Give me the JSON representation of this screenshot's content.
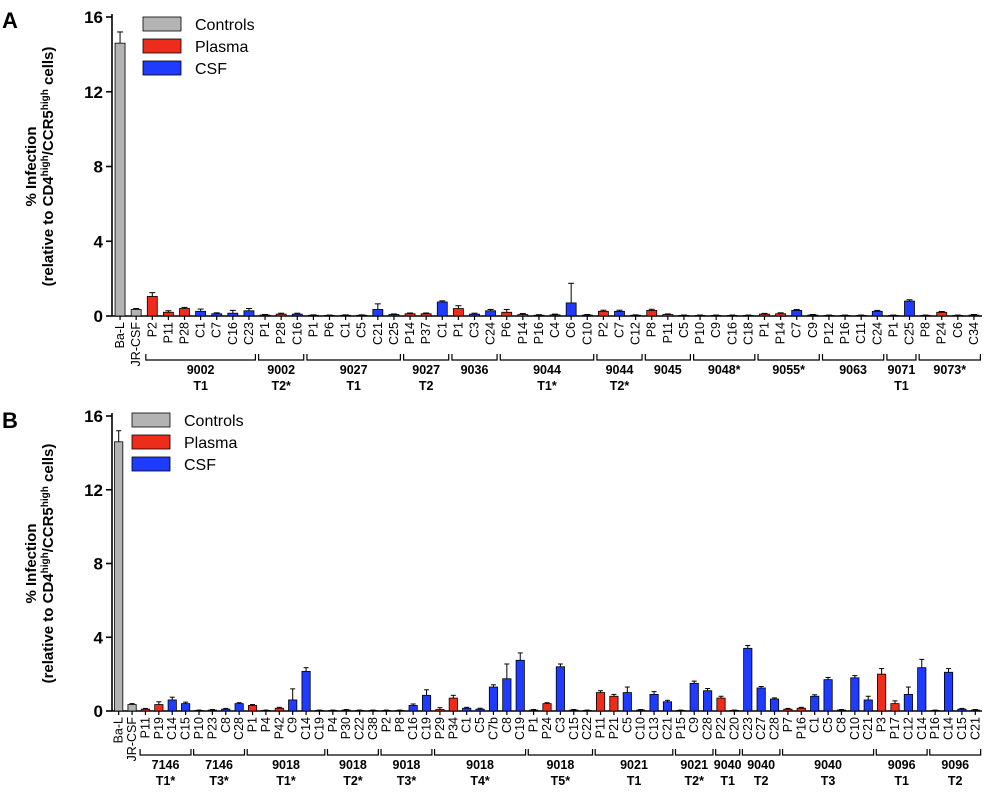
{
  "colors": {
    "controls": "#b3b3b3",
    "plasma": "#ee2c1c",
    "csf": "#1f3bff",
    "axis": "#000000"
  },
  "legend": [
    {
      "key": "controls",
      "label": "Controls"
    },
    {
      "key": "plasma",
      "label": "Plasma"
    },
    {
      "key": "csf",
      "label": "CSF"
    }
  ],
  "chart_data": [
    {
      "type": "bar",
      "panel": "A",
      "ylabel_line1": "% Infection",
      "ylabel_line2_parts": [
        "(relative to CD4",
        "high",
        "/CCR5",
        "high",
        " cells)"
      ],
      "ylim": [
        0,
        16
      ],
      "yticks": [
        "0",
        "4",
        "8",
        "12",
        "16"
      ],
      "bars": [
        {
          "cat": "Ba-L",
          "t": "controls",
          "v": 14.6,
          "e": 0.6
        },
        {
          "cat": "JR-CSF",
          "t": "controls",
          "v": 0.35,
          "e": 0.05
        },
        {
          "cat": "P2",
          "t": "plasma",
          "v": 1.05,
          "e": 0.2
        },
        {
          "cat": "P11",
          "t": "plasma",
          "v": 0.2,
          "e": 0.08
        },
        {
          "cat": "P28",
          "t": "plasma",
          "v": 0.4,
          "e": 0.06
        },
        {
          "cat": "C1",
          "t": "csf",
          "v": 0.25,
          "e": 0.12
        },
        {
          "cat": "C7",
          "t": "csf",
          "v": 0.12,
          "e": 0.05
        },
        {
          "cat": "C16",
          "t": "csf",
          "v": 0.15,
          "e": 0.15
        },
        {
          "cat": "C23",
          "t": "csf",
          "v": 0.28,
          "e": 0.12
        },
        {
          "cat": "P1",
          "t": "plasma",
          "v": 0.05,
          "e": 0.03
        },
        {
          "cat": "P28",
          "t": "plasma",
          "v": 0.1,
          "e": 0.05
        },
        {
          "cat": "C16",
          "t": "csf",
          "v": 0.1,
          "e": 0.05
        },
        {
          "cat": "P1",
          "t": "plasma",
          "v": 0.04,
          "e": 0.02
        },
        {
          "cat": "P6",
          "t": "plasma",
          "v": 0.03,
          "e": 0.02
        },
        {
          "cat": "C1",
          "t": "csf",
          "v": 0.04,
          "e": 0.02
        },
        {
          "cat": "C5",
          "t": "csf",
          "v": 0.04,
          "e": 0.02
        },
        {
          "cat": "C21",
          "t": "csf",
          "v": 0.35,
          "e": 0.3
        },
        {
          "cat": "C25",
          "t": "csf",
          "v": 0.08,
          "e": 0.03
        },
        {
          "cat": "P14",
          "t": "plasma",
          "v": 0.12,
          "e": 0.04
        },
        {
          "cat": "P37",
          "t": "plasma",
          "v": 0.12,
          "e": 0.04
        },
        {
          "cat": "C1",
          "t": "csf",
          "v": 0.75,
          "e": 0.06
        },
        {
          "cat": "P1",
          "t": "plasma",
          "v": 0.4,
          "e": 0.15
        },
        {
          "cat": "C3",
          "t": "csf",
          "v": 0.1,
          "e": 0.05
        },
        {
          "cat": "C24",
          "t": "csf",
          "v": 0.28,
          "e": 0.07
        },
        {
          "cat": "P6",
          "t": "plasma",
          "v": 0.2,
          "e": 0.15
        },
        {
          "cat": "P14",
          "t": "plasma",
          "v": 0.08,
          "e": 0.05
        },
        {
          "cat": "P16",
          "t": "plasma",
          "v": 0.04,
          "e": 0.03
        },
        {
          "cat": "C4",
          "t": "csf",
          "v": 0.06,
          "e": 0.04
        },
        {
          "cat": "C6",
          "t": "csf",
          "v": 0.7,
          "e": 1.05
        },
        {
          "cat": "C10",
          "t": "csf",
          "v": 0.05,
          "e": 0.03
        },
        {
          "cat": "P2",
          "t": "plasma",
          "v": 0.25,
          "e": 0.06
        },
        {
          "cat": "C7",
          "t": "csf",
          "v": 0.25,
          "e": 0.06
        },
        {
          "cat": "C12",
          "t": "csf",
          "v": 0.04,
          "e": 0.02
        },
        {
          "cat": "P8",
          "t": "plasma",
          "v": 0.3,
          "e": 0.06
        },
        {
          "cat": "P11",
          "t": "plasma",
          "v": 0.08,
          "e": 0.03
        },
        {
          "cat": "C5",
          "t": "csf",
          "v": 0.03,
          "e": 0.02
        },
        {
          "cat": "P10",
          "t": "plasma",
          "v": 0.03,
          "e": 0.02
        },
        {
          "cat": "C9",
          "t": "csf",
          "v": 0.03,
          "e": 0.02
        },
        {
          "cat": "C16",
          "t": "csf",
          "v": 0.03,
          "e": 0.02
        },
        {
          "cat": "C18",
          "t": "csf",
          "v": 0.03,
          "e": 0.02
        },
        {
          "cat": "P1",
          "t": "plasma",
          "v": 0.1,
          "e": 0.04
        },
        {
          "cat": "P14",
          "t": "plasma",
          "v": 0.12,
          "e": 0.05
        },
        {
          "cat": "C7",
          "t": "csf",
          "v": 0.3,
          "e": 0.05
        },
        {
          "cat": "C9",
          "t": "csf",
          "v": 0.05,
          "e": 0.03
        },
        {
          "cat": "P12",
          "t": "plasma",
          "v": 0.03,
          "e": 0.02
        },
        {
          "cat": "P16",
          "t": "plasma",
          "v": 0.03,
          "e": 0.02
        },
        {
          "cat": "C11",
          "t": "csf",
          "v": 0.03,
          "e": 0.02
        },
        {
          "cat": "C24",
          "t": "csf",
          "v": 0.25,
          "e": 0.05
        },
        {
          "cat": "P1",
          "t": "plasma",
          "v": 0.03,
          "e": 0.02
        },
        {
          "cat": "C25",
          "t": "csf",
          "v": 0.8,
          "e": 0.07
        },
        {
          "cat": "P8",
          "t": "plasma",
          "v": 0.03,
          "e": 0.02
        },
        {
          "cat": "P24",
          "t": "plasma",
          "v": 0.2,
          "e": 0.04
        },
        {
          "cat": "C6",
          "t": "csf",
          "v": 0.03,
          "e": 0.02
        },
        {
          "cat": "C34",
          "t": "csf",
          "v": 0.05,
          "e": 0.03
        }
      ],
      "groups": [
        {
          "start": 2,
          "end": 8,
          "l1": "9002",
          "l2": "T1"
        },
        {
          "start": 9,
          "end": 11,
          "l1": "9002",
          "l2": "T2*"
        },
        {
          "start": 12,
          "end": 17,
          "l1": "9027",
          "l2": "T1"
        },
        {
          "start": 18,
          "end": 20,
          "l1": "9027",
          "l2": "T2"
        },
        {
          "start": 21,
          "end": 23,
          "l1": "9036",
          "l2": ""
        },
        {
          "start": 24,
          "end": 29,
          "l1": "9044",
          "l2": "T1*"
        },
        {
          "start": 30,
          "end": 32,
          "l1": "9044",
          "l2": "T2*"
        },
        {
          "start": 33,
          "end": 35,
          "l1": "9045",
          "l2": ""
        },
        {
          "start": 36,
          "end": 39,
          "l1": "9048*",
          "l2": ""
        },
        {
          "start": 40,
          "end": 43,
          "l1": "9055*",
          "l2": ""
        },
        {
          "start": 44,
          "end": 47,
          "l1": "9063",
          "l2": ""
        },
        {
          "start": 48,
          "end": 49,
          "l1": "9071",
          "l2": "T1"
        },
        {
          "start": 50,
          "end": 53,
          "l1": "9073*",
          "l2": ""
        }
      ]
    },
    {
      "type": "bar",
      "panel": "B",
      "ylabel_line1": "% Infection",
      "ylabel_line2_parts": [
        "(relative to CD4",
        "high",
        "/CCR5",
        "high",
        " cells)"
      ],
      "ylim": [
        0,
        16
      ],
      "yticks": [
        "0",
        "4",
        "8",
        "12",
        "16"
      ],
      "bars": [
        {
          "cat": "Ba-L",
          "t": "controls",
          "v": 14.6,
          "e": 0.6
        },
        {
          "cat": "JR-CSF",
          "t": "controls",
          "v": 0.35,
          "e": 0.05
        },
        {
          "cat": "P11",
          "t": "plasma",
          "v": 0.1,
          "e": 0.04
        },
        {
          "cat": "P19",
          "t": "plasma",
          "v": 0.35,
          "e": 0.15
        },
        {
          "cat": "C14",
          "t": "csf",
          "v": 0.6,
          "e": 0.15
        },
        {
          "cat": "C15",
          "t": "csf",
          "v": 0.4,
          "e": 0.08
        },
        {
          "cat": "P10",
          "t": "plasma",
          "v": 0.03,
          "e": 0.02
        },
        {
          "cat": "P23",
          "t": "plasma",
          "v": 0.05,
          "e": 0.03
        },
        {
          "cat": "C8",
          "t": "csf",
          "v": 0.1,
          "e": 0.04
        },
        {
          "cat": "C28",
          "t": "csf",
          "v": 0.4,
          "e": 0.05
        },
        {
          "cat": "P1",
          "t": "plasma",
          "v": 0.3,
          "e": 0.05
        },
        {
          "cat": "P4",
          "t": "plasma",
          "v": 0.03,
          "e": 0.02
        },
        {
          "cat": "P42",
          "t": "plasma",
          "v": 0.15,
          "e": 0.05
        },
        {
          "cat": "C9",
          "t": "csf",
          "v": 0.6,
          "e": 0.6
        },
        {
          "cat": "C14",
          "t": "csf",
          "v": 2.15,
          "e": 0.2
        },
        {
          "cat": "C19",
          "t": "csf",
          "v": 0.03,
          "e": 0.02
        },
        {
          "cat": "P4",
          "t": "plasma",
          "v": 0.03,
          "e": 0.02
        },
        {
          "cat": "P30",
          "t": "plasma",
          "v": 0.05,
          "e": 0.03
        },
        {
          "cat": "C22",
          "t": "csf",
          "v": 0.03,
          "e": 0.02
        },
        {
          "cat": "C38",
          "t": "csf",
          "v": 0.03,
          "e": 0.02
        },
        {
          "cat": "P2",
          "t": "plasma",
          "v": 0.03,
          "e": 0.02
        },
        {
          "cat": "P8",
          "t": "plasma",
          "v": 0.03,
          "e": 0.02
        },
        {
          "cat": "C16",
          "t": "csf",
          "v": 0.3,
          "e": 0.08
        },
        {
          "cat": "C19",
          "t": "csf",
          "v": 0.85,
          "e": 0.3
        },
        {
          "cat": "P29",
          "t": "plasma",
          "v": 0.08,
          "e": 0.1
        },
        {
          "cat": "P34",
          "t": "plasma",
          "v": 0.7,
          "e": 0.15
        },
        {
          "cat": "C1",
          "t": "csf",
          "v": 0.15,
          "e": 0.05
        },
        {
          "cat": "C5",
          "t": "csf",
          "v": 0.1,
          "e": 0.05
        },
        {
          "cat": "C7b",
          "t": "csf",
          "v": 1.3,
          "e": 0.12
        },
        {
          "cat": "C8",
          "t": "csf",
          "v": 1.75,
          "e": 0.8
        },
        {
          "cat": "C19",
          "t": "csf",
          "v": 2.75,
          "e": 0.4
        },
        {
          "cat": "P1",
          "t": "plasma",
          "v": 0.05,
          "e": 0.03
        },
        {
          "cat": "P24",
          "t": "plasma",
          "v": 0.4,
          "e": 0.05
        },
        {
          "cat": "C3",
          "t": "csf",
          "v": 2.4,
          "e": 0.15
        },
        {
          "cat": "C15",
          "t": "csf",
          "v": 0.05,
          "e": 0.03
        },
        {
          "cat": "C22",
          "t": "csf",
          "v": 0.03,
          "e": 0.02
        },
        {
          "cat": "P11",
          "t": "plasma",
          "v": 1.0,
          "e": 0.1
        },
        {
          "cat": "P21",
          "t": "plasma",
          "v": 0.8,
          "e": 0.1
        },
        {
          "cat": "C5",
          "t": "csf",
          "v": 1.0,
          "e": 0.3
        },
        {
          "cat": "C10",
          "t": "csf",
          "v": 0.05,
          "e": 0.03
        },
        {
          "cat": "C13",
          "t": "csf",
          "v": 0.9,
          "e": 0.15
        },
        {
          "cat": "C21",
          "t": "csf",
          "v": 0.5,
          "e": 0.08
        },
        {
          "cat": "P15",
          "t": "plasma",
          "v": 0.03,
          "e": 0.02
        },
        {
          "cat": "C9",
          "t": "csf",
          "v": 1.5,
          "e": 0.12
        },
        {
          "cat": "C28",
          "t": "csf",
          "v": 1.1,
          "e": 0.12
        },
        {
          "cat": "P22",
          "t": "plasma",
          "v": 0.7,
          "e": 0.1
        },
        {
          "cat": "C20",
          "t": "csf",
          "v": 0.03,
          "e": 0.02
        },
        {
          "cat": "C23",
          "t": "csf",
          "v": 3.4,
          "e": 0.15
        },
        {
          "cat": "C27",
          "t": "csf",
          "v": 1.25,
          "e": 0.08
        },
        {
          "cat": "C28",
          "t": "csf",
          "v": 0.65,
          "e": 0.06
        },
        {
          "cat": "P7",
          "t": "plasma",
          "v": 0.1,
          "e": 0.04
        },
        {
          "cat": "P16",
          "t": "plasma",
          "v": 0.15,
          "e": 0.05
        },
        {
          "cat": "C1",
          "t": "csf",
          "v": 0.8,
          "e": 0.08
        },
        {
          "cat": "C5",
          "t": "csf",
          "v": 1.7,
          "e": 0.12
        },
        {
          "cat": "C8",
          "t": "csf",
          "v": 0.05,
          "e": 0.03
        },
        {
          "cat": "C10",
          "t": "csf",
          "v": 1.8,
          "e": 0.12
        },
        {
          "cat": "C21",
          "t": "csf",
          "v": 0.6,
          "e": 0.2
        },
        {
          "cat": "P3",
          "t": "plasma",
          "v": 2.0,
          "e": 0.3
        },
        {
          "cat": "P17",
          "t": "plasma",
          "v": 0.4,
          "e": 0.15
        },
        {
          "cat": "C12",
          "t": "csf",
          "v": 0.9,
          "e": 0.4
        },
        {
          "cat": "C14",
          "t": "csf",
          "v": 2.35,
          "e": 0.45
        },
        {
          "cat": "P16",
          "t": "plasma",
          "v": 0.03,
          "e": 0.02
        },
        {
          "cat": "C14",
          "t": "csf",
          "v": 2.1,
          "e": 0.2
        },
        {
          "cat": "C15",
          "t": "csf",
          "v": 0.1,
          "e": 0.04
        },
        {
          "cat": "C21",
          "t": "csf",
          "v": 0.05,
          "e": 0.03
        }
      ],
      "groups": [
        {
          "start": 2,
          "end": 5,
          "l1": "7146",
          "l2": "T1*"
        },
        {
          "start": 6,
          "end": 9,
          "l1": "7146",
          "l2": "T3*"
        },
        {
          "start": 10,
          "end": 15,
          "l1": "9018",
          "l2": "T1*"
        },
        {
          "start": 16,
          "end": 19,
          "l1": "9018",
          "l2": "T2*"
        },
        {
          "start": 20,
          "end": 23,
          "l1": "9018",
          "l2": "T3*"
        },
        {
          "start": 24,
          "end": 30,
          "l1": "9018",
          "l2": "T4*"
        },
        {
          "start": 31,
          "end": 35,
          "l1": "9018",
          "l2": "T5*"
        },
        {
          "start": 36,
          "end": 41,
          "l1": "9021",
          "l2": "T1"
        },
        {
          "start": 42,
          "end": 44,
          "l1": "9021",
          "l2": "T2*"
        },
        {
          "start": 45,
          "end": 46,
          "l1": "9040",
          "l2": "T1"
        },
        {
          "start": 47,
          "end": 49,
          "l1": "9040",
          "l2": "T2"
        },
        {
          "start": 50,
          "end": 56,
          "l1": "9040",
          "l2": "T3"
        },
        {
          "start": 57,
          "end": 60,
          "l1": "9096",
          "l2": "T1"
        },
        {
          "start": 61,
          "end": 64,
          "l1": "9096",
          "l2": "T2"
        }
      ]
    }
  ]
}
